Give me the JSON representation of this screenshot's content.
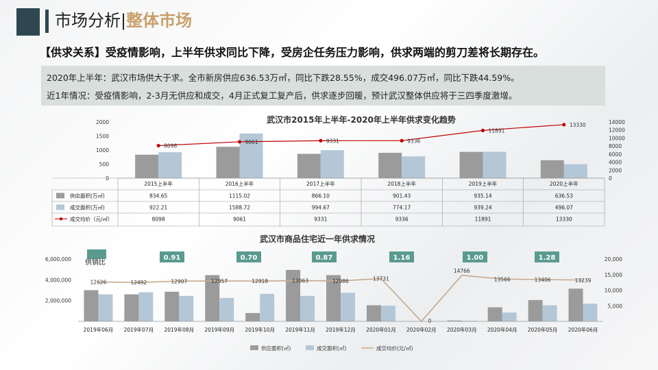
{
  "header": {
    "title_main": "市场分析",
    "title_sep": "|",
    "title_sub": "整体市场"
  },
  "headline": "【供求关系】受疫情影响，上半年供求同比下降，受房企任务压力影响，供求两端的剪刀差将长期存在。",
  "summary": {
    "line1": "2020年上半年：武汉市场供大于求。全市新房供应636.53万㎡，同比下跌28.55%，成交496.07万㎡，同比下跌44.59%。",
    "line2": "近1年情况：受疫情影响，2-3月无供应和成交，4月正式复工复产后，供求逐步回暖，预计武汉整体供应将于三四季度激增。"
  },
  "colors": {
    "supply": "#9b9b9b",
    "deal": "#b4c7d7",
    "price1": "#c00000",
    "price2": "#c8a98a",
    "ratio_badge": "#5a9a8f",
    "summary_bg": "#d8dfdc",
    "accent_gold": "#c8a06a",
    "dark_block": "#2f4750"
  },
  "chart_data": [
    {
      "type": "bar",
      "title": "武汉市2015年上半年-2020年上半年供求变化趋势",
      "categories": [
        "2015上半年",
        "2016上半年",
        "2017上半年",
        "2018上半年",
        "2019上半年",
        "2020上半年"
      ],
      "series": [
        {
          "name": "供应面积(万㎡)",
          "kind": "bar",
          "axis": "left",
          "values": [
            834.65,
            1115.02,
            866.1,
            901.43,
            935.14,
            636.53
          ]
        },
        {
          "name": "成交面积(万㎡)",
          "kind": "bar",
          "axis": "left",
          "values": [
            922.21,
            1588.72,
            994.67,
            774.17,
            939.24,
            496.07
          ]
        },
        {
          "name": "成交均价（元/㎡）",
          "kind": "line",
          "axis": "right",
          "values": [
            8098,
            9061,
            9331,
            9336,
            11891,
            13330
          ]
        }
      ],
      "table_rows": [
        [
          "834.65",
          "1115.02",
          "866.10",
          "901.43",
          "935.14",
          "636.53"
        ],
        [
          "922.21",
          "1588.72",
          "994.67",
          "774.17",
          "939.24",
          "496.07"
        ],
        [
          "8098",
          "9061",
          "9331",
          "9336",
          "11891",
          "13330"
        ]
      ],
      "point_labels": [
        "8098",
        "9061",
        "9331",
        "9336",
        "11891",
        "13330"
      ],
      "ylim": [
        0,
        2000
      ],
      "y_ticks": [
        0,
        500,
        1000,
        1500,
        2000
      ],
      "ylim_right": [
        0,
        14000
      ],
      "y_ticks_right": [
        0,
        2000,
        4000,
        6000,
        8000,
        10000,
        12000,
        14000
      ],
      "legend": "data-table"
    },
    {
      "type": "bar",
      "title": "武汉市商品住宅近一年供求情况",
      "categories": [
        "2019年06月",
        "2019年07月",
        "2019年08月",
        "2019年09月",
        "2019年10月",
        "2019年11月",
        "2019年12月",
        "2020年01月",
        "2020年02月",
        "2020年03月",
        "2020年04月",
        "2020年05月",
        "2020年06月"
      ],
      "series": [
        {
          "name": "供应面积(㎡)",
          "kind": "bar",
          "axis": "left",
          "values": [
            3000000,
            2600000,
            2850000,
            4450000,
            800000,
            4950000,
            4450000,
            1550000,
            0,
            80000,
            1350000,
            2050000,
            3150000
          ]
        },
        {
          "name": "成交面积(㎡)",
          "kind": "bar",
          "axis": "left",
          "values": [
            2600000,
            2800000,
            2450000,
            2250000,
            2650000,
            2450000,
            2750000,
            1500000,
            0,
            60000,
            850000,
            1550000,
            1700000
          ]
        },
        {
          "name": "成交均价(元/㎡)",
          "kind": "line",
          "axis": "right",
          "values": [
            12626,
            12492,
            12907,
            12957,
            12918,
            13063,
            12986,
            13731,
            0,
            14766,
            13566,
            13406,
            13239
          ]
        }
      ],
      "point_labels": [
        "12626",
        "12492",
        "12907",
        "12957",
        "12918",
        "13063",
        "12986",
        "13731",
        "0",
        "14766",
        "13566",
        "13406",
        "13239"
      ],
      "ratio_label": "供销比",
      "ratio_badges": [
        {
          "slot": 2,
          "text": "0.91"
        },
        {
          "slot": 4,
          "text": "0.70"
        },
        {
          "slot": 6,
          "text": "0.87"
        },
        {
          "slot": 8,
          "text": "1.16"
        },
        {
          "slot": 10,
          "text": "1.00"
        },
        {
          "slot": 12,
          "text": "1.28"
        }
      ],
      "ylim": [
        0,
        6000000
      ],
      "y_ticks_labels": [
        "2,000,000",
        "4,000,000",
        "6,000,000"
      ],
      "y_ticks": [
        2000000,
        4000000,
        6000000
      ],
      "ylim_right": [
        0,
        20000
      ],
      "y_ticks_right": [
        5000,
        10000,
        15000,
        20000
      ],
      "y_ticks_right_labels": [
        "5,000",
        "10,000",
        "15,000",
        "20,000"
      ],
      "legend": "bottom"
    }
  ]
}
